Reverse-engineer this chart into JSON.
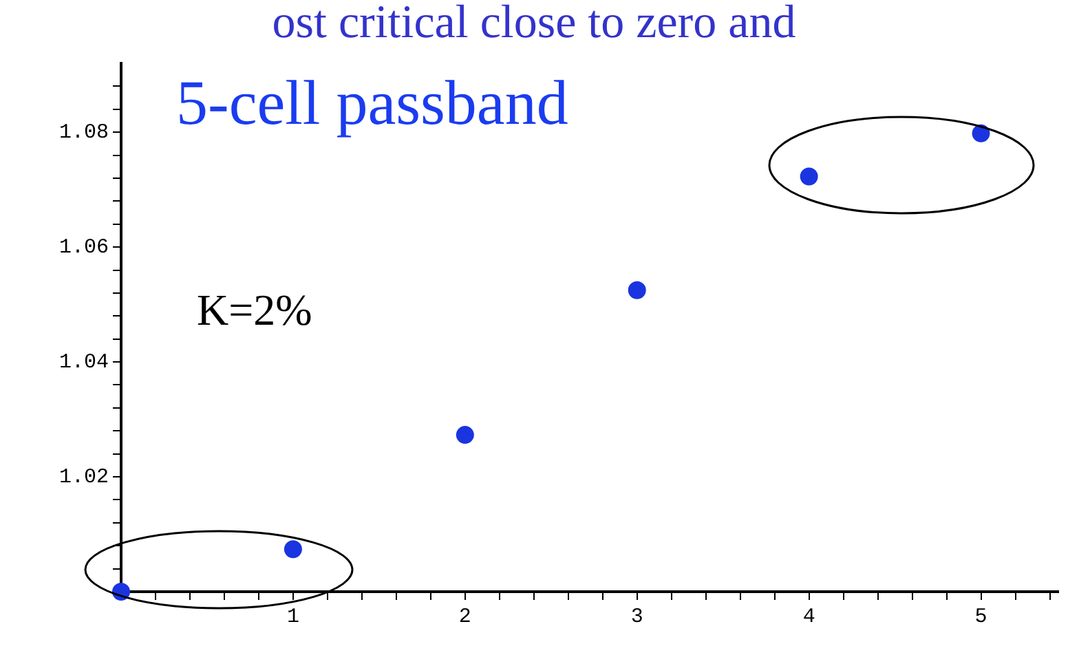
{
  "chart_data": {
    "type": "scatter",
    "title": "ost critical close to zero and",
    "x": [
      0,
      1,
      2,
      3,
      4,
      5
    ],
    "series": [
      {
        "color": "#1a35e0",
        "values": [
          1.0,
          1.0074,
          1.0273,
          1.0525,
          1.0723,
          1.0798
        ]
      }
    ],
    "xlim": [
      0,
      5.45
    ],
    "ylim": [
      1.0,
      1.092
    ],
    "xticks": [
      {
        "value": 0.2,
        "label": null
      },
      {
        "value": 0.4,
        "label": null
      },
      {
        "value": 0.6,
        "label": null
      },
      {
        "value": 0.8,
        "label": null
      },
      1,
      {
        "value": 1.2,
        "label": null
      },
      {
        "value": 1.4,
        "label": null
      },
      {
        "value": 1.6,
        "label": null
      },
      {
        "value": 1.8,
        "label": null
      },
      2,
      {
        "value": 2.2,
        "label": null
      },
      {
        "value": 2.4,
        "label": null
      },
      {
        "value": 2.6,
        "label": null
      },
      {
        "value": 2.8,
        "label": null
      },
      3,
      {
        "value": 3.2,
        "label": null
      },
      {
        "value": 3.4,
        "label": null
      },
      {
        "value": 3.6,
        "label": null
      },
      {
        "value": 3.8,
        "label": null
      },
      4,
      {
        "value": 4.2,
        "label": null
      },
      {
        "value": 4.4,
        "label": null
      },
      {
        "value": 4.6,
        "label": null
      },
      {
        "value": 4.8,
        "label": null
      },
      5,
      {
        "value": 5.2,
        "label": null
      },
      {
        "value": 5.4,
        "label": null
      }
    ],
    "yticks": [
      {
        "value": 1.004,
        "label": null
      },
      {
        "value": 1.008,
        "label": null
      },
      {
        "value": 1.012,
        "label": null
      },
      {
        "value": 1.016,
        "label": null
      },
      {
        "value": 1.02,
        "label": "1.02"
      },
      {
        "value": 1.024,
        "label": null
      },
      {
        "value": 1.028,
        "label": null
      },
      {
        "value": 1.032,
        "label": null
      },
      {
        "value": 1.036,
        "label": null
      },
      {
        "value": 1.04,
        "label": "1.04"
      },
      {
        "value": 1.044,
        "label": null
      },
      {
        "value": 1.048,
        "label": null
      },
      {
        "value": 1.052,
        "label": null
      },
      {
        "value": 1.056,
        "label": null
      },
      {
        "value": 1.06,
        "label": "1.06"
      },
      {
        "value": 1.064,
        "label": null
      },
      {
        "value": 1.068,
        "label": null
      },
      {
        "value": 1.072,
        "label": null
      },
      {
        "value": 1.076,
        "label": null
      },
      {
        "value": 1.08,
        "label": "1.08"
      },
      {
        "value": 1.084,
        "label": null
      },
      {
        "value": 1.088,
        "label": null
      }
    ],
    "annotations": [
      "5-cell passband",
      "K=2%"
    ],
    "marker": "circle",
    "grid": false,
    "legend": false
  }
}
